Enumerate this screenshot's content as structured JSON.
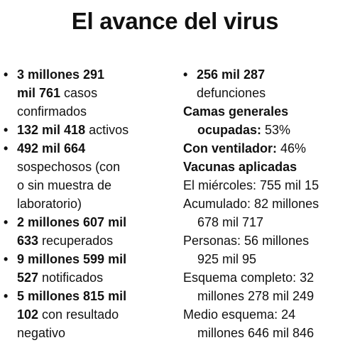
{
  "title": "El avance del virus",
  "bullet": "•",
  "left": {
    "confirmados": {
      "line1": "3 millones 291",
      "line2_bold": "mil 761",
      "line2_text": " casos",
      "line3": "confirmados"
    },
    "activos": {
      "bold": "132 mil 418",
      "text": " activos"
    },
    "sospechosos": {
      "bold": "492 mil 664",
      "line2": "sospechosos (con",
      "line3": "o sin muestra de",
      "line4": "laboratorio)"
    },
    "recuperados": {
      "line1": "2 millones 607 mil",
      "line2_bold": "633",
      "line2_text": " recuperados"
    },
    "notificados": {
      "line1": "9 millones 599 mil",
      "line2_bold": "527",
      "line2_text": " notificados"
    },
    "negativos": {
      "line1": "5 millones 815 mil",
      "line2_bold": "102",
      "line2_text": " con resultado",
      "line3": "negativo"
    }
  },
  "right": {
    "defunciones": {
      "bold": "256 mil 287",
      "line2": "defunciones"
    },
    "camas": {
      "line1": "Camas generales",
      "line2_bold": "ocupadas:",
      "line2_text": " 53%"
    },
    "ventilador": {
      "bold": "Con ventilador:",
      "text": " 46%"
    },
    "vacunas": {
      "heading": "Vacunas aplicadas",
      "miercoles": "El miércoles: 755 mil 15",
      "acumulado_line1": "Acumulado: 82 millones",
      "acumulado_line2": "678 mil 717",
      "personas_line1": "Personas: 56 millones",
      "personas_line2": "925 mil 95",
      "completo_line1": "Esquema completo: 32",
      "completo_line2": "millones 278 mil 249",
      "medio_line1": "Medio esquema: 24",
      "medio_line2": "millones 646 mil 846"
    }
  }
}
